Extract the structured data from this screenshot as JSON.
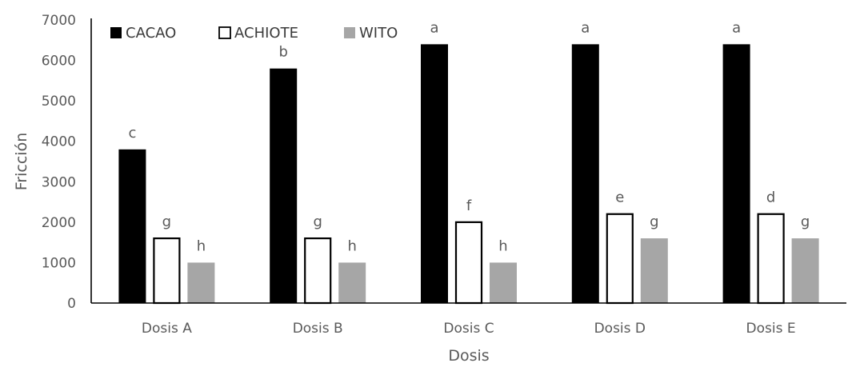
{
  "chart_data": {
    "type": "bar",
    "title": "",
    "xlabel": "Dosis",
    "ylabel": "Fricción",
    "ylim": [
      0,
      7000
    ],
    "yticks": [
      0,
      1000,
      2000,
      3000,
      4000,
      5000,
      6000,
      7000
    ],
    "grid": false,
    "legend_position": "top-left",
    "categories": [
      "Dosis A",
      "Dosis B",
      "Dosis C",
      "Dosis D",
      "Dosis E"
    ],
    "series": [
      {
        "name": "CACAO",
        "color": "#000000",
        "fill": "solid",
        "values": [
          3800,
          5800,
          6400,
          6400,
          6400
        ],
        "labels": [
          "c",
          "b",
          "a",
          "a",
          "a"
        ]
      },
      {
        "name": "ACHIOTE",
        "color": "#ffffff",
        "stroke": "#000000",
        "fill": "outline",
        "values": [
          1600,
          1600,
          2000,
          2200,
          2200
        ],
        "labels": [
          "g",
          "g",
          "f",
          "e",
          "d"
        ]
      },
      {
        "name": "WITO",
        "color": "#a6a6a6",
        "fill": "solid",
        "values": [
          1000,
          1000,
          1000,
          1600,
          1600
        ],
        "labels": [
          "h",
          "h",
          "h",
          "g",
          "g"
        ]
      }
    ]
  }
}
